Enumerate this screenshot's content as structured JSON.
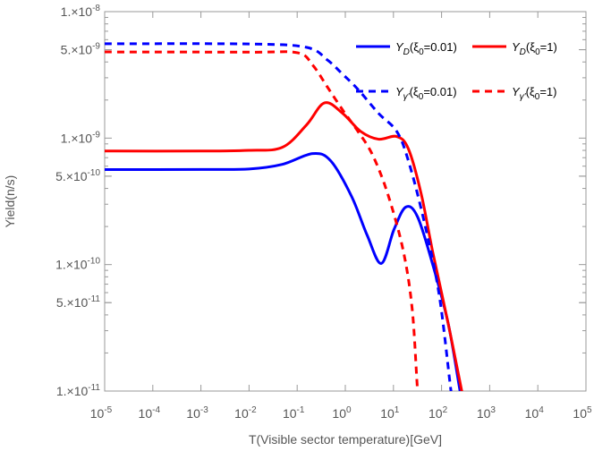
{
  "chart_data": {
    "type": "line",
    "title": "",
    "xlabel": "T(Visible sector temperature)[GeV]",
    "ylabel": "Yield(n/s)",
    "xscale": "log",
    "yscale": "log",
    "xlim": [
      1e-05,
      100000.0
    ],
    "ylim": [
      1e-11,
      1e-08
    ],
    "grid": false,
    "legend_position": "top-right",
    "x_ticks": [
      {
        "base": "10",
        "exp": "-5",
        "value": 1e-05
      },
      {
        "base": "10",
        "exp": "-4",
        "value": 0.0001
      },
      {
        "base": "10",
        "exp": "-3",
        "value": 0.001
      },
      {
        "base": "10",
        "exp": "-2",
        "value": 0.01
      },
      {
        "base": "10",
        "exp": "-1",
        "value": 0.1
      },
      {
        "base": "10",
        "exp": "0",
        "value": 1
      },
      {
        "base": "10",
        "exp": "1",
        "value": 10
      },
      {
        "base": "10",
        "exp": "2",
        "value": 100
      },
      {
        "base": "10",
        "exp": "3",
        "value": 1000
      },
      {
        "base": "10",
        "exp": "4",
        "value": 10000
      },
      {
        "base": "10",
        "exp": "5",
        "value": 100000
      }
    ],
    "y_ticks": [
      {
        "mant": "1.×10",
        "exp": "-8",
        "value": 1e-08
      },
      {
        "mant": "5.×10",
        "exp": "-9",
        "value": 5e-09
      },
      {
        "mant": "1.×10",
        "exp": "-9",
        "value": 1e-09
      },
      {
        "mant": "5.×10",
        "exp": "-10",
        "value": 5e-10
      },
      {
        "mant": "1.×10",
        "exp": "-10",
        "value": 1e-10
      },
      {
        "mant": "5.×10",
        "exp": "-11",
        "value": 5e-11
      },
      {
        "mant": "1.×10",
        "exp": "-11",
        "value": 1e-11
      }
    ],
    "series": [
      {
        "name": "Y_D(ξ0=0.01)",
        "legend": {
          "main": "Y",
          "sub": "D",
          "rest": "(ξ",
          "sub2": "0",
          "tail": "=0.01)"
        },
        "color": "#0000ff",
        "dash": false,
        "x": [
          1e-05,
          0.001,
          0.01,
          0.049,
          0.21,
          0.5,
          1.35,
          2.82,
          5.6,
          10.3,
          18.1,
          31.8,
          66,
          138,
          242
        ],
        "y": [
          5.64e-10,
          5.65e-10,
          5.7e-10,
          6.2e-10,
          7.55e-10,
          6.6e-10,
          3.46e-10,
          1.72e-10,
          1.02e-10,
          1.9e-10,
          2.85e-10,
          2.38e-10,
          9.9e-11,
          3.39e-11,
          1e-11
        ]
      },
      {
        "name": "Y_D(ξ0=1)",
        "legend": {
          "main": "Y",
          "sub": "D",
          "rest": "(ξ",
          "sub2": "0",
          "tail": "=1)"
        },
        "color": "#ff0000",
        "dash": false,
        "x": [
          1e-05,
          0.001,
          0.01,
          0.049,
          0.156,
          0.37,
          0.88,
          2.08,
          4.9,
          11.7,
          20.5,
          37.7,
          66,
          138,
          263
        ],
        "y": [
          7.9e-10,
          7.9e-10,
          8e-10,
          8.45e-10,
          1.27e-09,
          1.9e-09,
          1.57e-09,
          1.13e-09,
          9.8e-10,
          1.03e-09,
          8.2e-10,
          3.63e-10,
          1.24e-10,
          3.39e-11,
          1e-11
        ]
      },
      {
        "name": "Y_γ'(ξ0=0.01)",
        "legend": {
          "main": "Y",
          "sub": "γ'",
          "rest": "(ξ",
          "sub2": "0",
          "tail": "=0.01)"
        },
        "color": "#0000ff",
        "dash": true,
        "x": [
          1e-05,
          0.01,
          0.156,
          0.42,
          0.88,
          1.83,
          4.9,
          11.7,
          20.5,
          43,
          89,
          157
        ],
        "y": [
          5.57e-09,
          5.55e-09,
          5.22e-09,
          4.16e-09,
          3.2e-09,
          2.43e-09,
          1.57e-09,
          1.13e-09,
          6.6e-10,
          2.23e-10,
          5.8e-11,
          1e-11
        ]
      },
      {
        "name": "Y_γ'(ξ0=1)",
        "legend": {
          "main": "Y",
          "sub": "γ'",
          "rest": "(ξ",
          "sub2": "0",
          "tail": "=1)"
        },
        "color": "#ff0000",
        "dash": true,
        "x": [
          1e-05,
          0.01,
          0.101,
          0.21,
          0.42,
          0.88,
          1.83,
          3.66,
          7.6,
          15.9,
          24.6,
          31.8
        ],
        "y": [
          4.8e-09,
          4.78e-09,
          4.73e-09,
          3.78e-09,
          2.55e-09,
          1.67e-09,
          1.13e-09,
          7.4e-10,
          3.63e-10,
          1.3e-10,
          4.4e-11,
          1e-11
        ]
      }
    ]
  }
}
